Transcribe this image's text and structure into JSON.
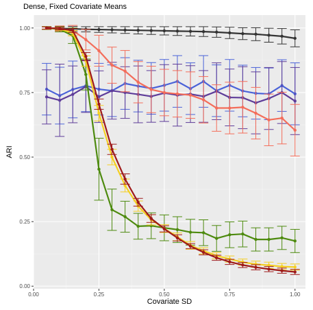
{
  "chart_data": {
    "type": "line",
    "title": "Dense, Fixed Covariate Means",
    "xlabel": "Covariate SD",
    "ylabel": "ARI",
    "xlim": [
      0.0,
      1.04
    ],
    "ylim": [
      -0.01,
      1.05
    ],
    "x_ticks": [
      0.0,
      0.25,
      0.5,
      0.75,
      1.0
    ],
    "x_tick_labels": [
      "0.00",
      "0.25",
      "0.50",
      "0.75",
      "1.00"
    ],
    "y_ticks": [
      0.0,
      0.25,
      0.5,
      0.75,
      1.0
    ],
    "y_tick_labels": [
      "0.00",
      "0.25",
      "0.50",
      "0.75",
      "1.00"
    ],
    "grid": true,
    "legend": "none",
    "x": [
      0.05,
      0.1,
      0.15,
      0.2,
      0.25,
      0.3,
      0.35,
      0.4,
      0.45,
      0.5,
      0.55,
      0.6,
      0.65,
      0.7,
      0.75,
      0.8,
      0.85,
      0.9,
      0.95,
      1.0
    ],
    "series": [
      {
        "color": "#333333",
        "values": [
          1.0,
          0.998,
          0.997,
          0.995,
          0.994,
          0.993,
          0.992,
          0.991,
          0.99,
          0.989,
          0.988,
          0.987,
          0.986,
          0.984,
          0.981,
          0.978,
          0.976,
          0.972,
          0.968,
          0.96
        ],
        "err": [
          0.006,
          0.008,
          0.009,
          0.01,
          0.011,
          0.012,
          0.013,
          0.014,
          0.015,
          0.016,
          0.017,
          0.018,
          0.019,
          0.02,
          0.022,
          0.023,
          0.025,
          0.027,
          0.03,
          0.033
        ]
      },
      {
        "color": "#4a62d8",
        "values": [
          0.763,
          0.738,
          0.762,
          0.776,
          0.763,
          0.757,
          0.785,
          0.775,
          0.766,
          0.778,
          0.793,
          0.765,
          0.793,
          0.757,
          0.778,
          0.756,
          0.747,
          0.745,
          0.777,
          0.745
        ],
        "err": [
          0.1,
          0.11,
          0.11,
          0.1,
          0.1,
          0.1,
          0.1,
          0.1,
          0.1,
          0.1,
          0.1,
          0.1,
          0.1,
          0.1,
          0.1,
          0.1,
          0.1,
          0.1,
          0.1,
          0.12
        ]
      },
      {
        "color": "#5e3c99",
        "values": [
          0.733,
          0.72,
          0.743,
          0.773,
          0.734,
          0.757,
          0.75,
          0.743,
          0.735,
          0.748,
          0.74,
          0.744,
          0.735,
          0.755,
          0.731,
          0.73,
          0.71,
          0.727,
          0.75,
          0.717
        ],
        "err": [
          0.105,
          0.14,
          0.11,
          0.1,
          0.1,
          0.11,
          0.1,
          0.11,
          0.1,
          0.11,
          0.12,
          0.11,
          0.1,
          0.11,
          0.11,
          0.12,
          0.12,
          0.12,
          0.12,
          0.13
        ]
      },
      {
        "color": "#f46d5a",
        "values": [
          1.0,
          0.998,
          0.99,
          0.955,
          0.912,
          0.856,
          0.833,
          0.79,
          0.762,
          0.75,
          0.745,
          0.74,
          0.722,
          0.69,
          0.69,
          0.693,
          0.67,
          0.644,
          0.651,
          0.604
        ],
        "err": [
          0.005,
          0.01,
          0.02,
          0.04,
          0.06,
          0.07,
          0.08,
          0.08,
          0.09,
          0.09,
          0.09,
          0.09,
          0.09,
          0.09,
          0.1,
          0.1,
          0.1,
          0.1,
          0.1,
          0.1
        ]
      },
      {
        "color": "#4d8a0e",
        "values": [
          1.0,
          0.995,
          0.97,
          0.82,
          0.453,
          0.296,
          0.269,
          0.232,
          0.234,
          0.226,
          0.219,
          0.209,
          0.207,
          0.185,
          0.199,
          0.202,
          0.181,
          0.181,
          0.187,
          0.175
        ],
        "err": [
          0.005,
          0.01,
          0.03,
          0.06,
          0.12,
          0.08,
          0.06,
          0.05,
          0.05,
          0.05,
          0.05,
          0.05,
          0.05,
          0.05,
          0.05,
          0.05,
          0.045,
          0.045,
          0.045,
          0.045
        ]
      },
      {
        "color": "#f5cf22",
        "values": [
          1.0,
          0.997,
          0.98,
          0.872,
          0.67,
          0.5,
          0.39,
          0.31,
          0.257,
          0.223,
          0.191,
          0.158,
          0.137,
          0.118,
          0.105,
          0.093,
          0.085,
          0.081,
          0.076,
          0.074
        ],
        "err": [
          0.005,
          0.006,
          0.01,
          0.02,
          0.03,
          0.03,
          0.025,
          0.02,
          0.02,
          0.015,
          0.015,
          0.015,
          0.012,
          0.012,
          0.012,
          0.012,
          0.012,
          0.012,
          0.012,
          0.012
        ]
      },
      {
        "color": "#9e1a1a",
        "values": [
          1.0,
          0.998,
          0.99,
          0.89,
          0.705,
          0.53,
          0.415,
          0.325,
          0.262,
          0.222,
          0.187,
          0.155,
          0.131,
          0.11,
          0.094,
          0.082,
          0.073,
          0.066,
          0.06,
          0.055
        ],
        "err": [
          0.004,
          0.005,
          0.008,
          0.015,
          0.02,
          0.02,
          0.02,
          0.015,
          0.015,
          0.012,
          0.012,
          0.01,
          0.01,
          0.01,
          0.01,
          0.01,
          0.01,
          0.01,
          0.01,
          0.01
        ]
      }
    ]
  }
}
